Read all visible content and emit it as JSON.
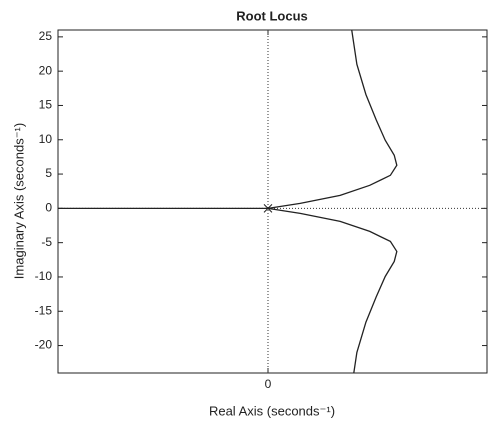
{
  "chart_data": {
    "type": "line",
    "title": "Root Locus",
    "xlabel": "Real Axis (seconds⁻¹)",
    "ylabel": "Imaginary Axis (seconds⁻¹)",
    "xlim": [
      -1.63,
      1.7
    ],
    "ylim": [
      -24,
      26
    ],
    "xticks": [
      0
    ],
    "yticks": [
      25,
      20,
      15,
      10,
      5,
      0,
      -5,
      -10,
      -15,
      -20
    ],
    "color": "#222222",
    "series": [
      {
        "x": [
          -1.63,
          0
        ],
        "values": [
          0,
          0
        ]
      },
      {
        "x": [
          0,
          0.25,
          0.56,
          0.79,
          0.95,
          1.0,
          0.98,
          0.91,
          0.84,
          0.76,
          0.69,
          0.65
        ],
        "values": [
          0,
          0.73,
          1.9,
          3.36,
          4.82,
          6.28,
          7.74,
          9.93,
          12.9,
          16.6,
          21,
          26
        ]
      },
      {
        "x": [
          0,
          0.25,
          0.56,
          0.79,
          0.95,
          1.0,
          0.98,
          0.91,
          0.84,
          0.76,
          0.69,
          0.65
        ],
        "values": [
          0,
          -0.73,
          -1.9,
          -3.36,
          -4.82,
          -6.28,
          -7.74,
          -9.93,
          -12.9,
          -16.6,
          -21,
          -26
        ]
      }
    ]
  }
}
